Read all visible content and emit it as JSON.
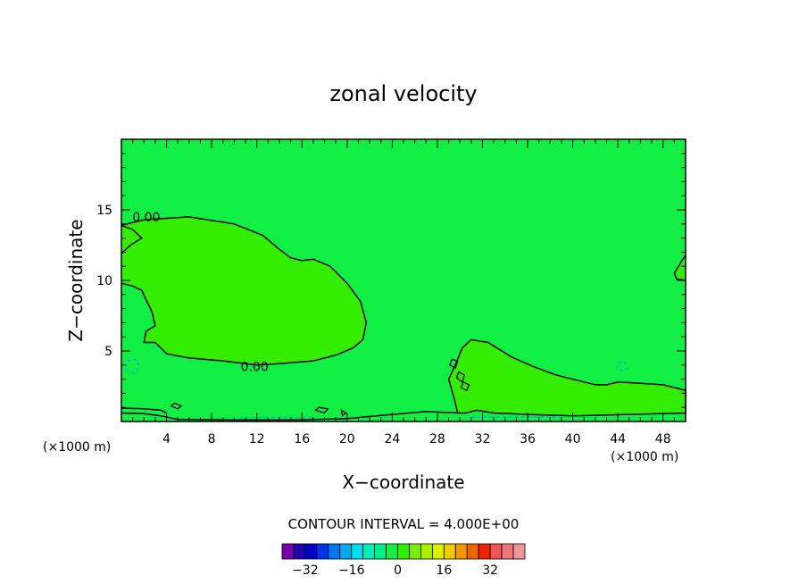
{
  "chart_data": {
    "type": "contour",
    "title": "zonal velocity",
    "xlabel": "X−coordinate",
    "ylabel": "Z−coordinate",
    "x_unit_label": "(×1000 m)",
    "x_unit_label_bottom": "(×1000 m)",
    "xlim": [
      0,
      50
    ],
    "ylim": [
      0,
      20
    ],
    "x_ticks": [
      4,
      8,
      12,
      16,
      20,
      24,
      28,
      32,
      36,
      40,
      44,
      48
    ],
    "x_tick_labels": [
      "4",
      "8",
      "12",
      "16",
      "20",
      "24",
      "28",
      "32",
      "36",
      "40",
      "44",
      "48"
    ],
    "y_ticks": [
      5,
      10,
      15
    ],
    "y_tick_labels": [
      "5",
      "10",
      "15"
    ],
    "background_color": "#11EE44",
    "region_color": "#33EE00",
    "contour_labels": [
      {
        "text": "0.00",
        "x": 2.2,
        "y": 14.5
      },
      {
        "text": "0.00",
        "x": 11.8,
        "y": 3.9
      }
    ],
    "zero_contours": [
      [
        [
          0,
          13.9
        ],
        [
          2.0,
          14.3
        ],
        [
          6.0,
          14.5
        ],
        [
          10.0,
          14.0
        ],
        [
          12.5,
          13.2
        ],
        [
          14.0,
          12.2
        ],
        [
          15.0,
          11.6
        ],
        [
          16.0,
          11.4
        ],
        [
          17.0,
          11.5
        ],
        [
          18.5,
          11.0
        ],
        [
          20.0,
          9.8
        ],
        [
          21.2,
          8.5
        ],
        [
          21.7,
          7.0
        ],
        [
          21.4,
          5.8
        ],
        [
          20.5,
          5.2
        ],
        [
          19.0,
          4.7
        ],
        [
          17.0,
          4.3
        ],
        [
          14.0,
          4.1
        ],
        [
          12.0,
          4.0
        ],
        [
          9.0,
          4.3
        ],
        [
          6.0,
          4.5
        ],
        [
          4.0,
          4.8
        ],
        [
          3.0,
          5.6
        ],
        [
          2.0,
          5.6
        ],
        [
          2.2,
          6.4
        ],
        [
          3.0,
          6.8
        ],
        [
          2.7,
          7.8
        ],
        [
          2.2,
          8.6
        ],
        [
          1.8,
          9.3
        ],
        [
          1.0,
          9.6
        ],
        [
          0,
          9.8
        ]
      ],
      [
        [
          0,
          11.9
        ],
        [
          0.8,
          12.5
        ],
        [
          1.8,
          13.0
        ],
        [
          1.0,
          13.6
        ],
        [
          0,
          13.9
        ]
      ],
      [
        [
          29.8,
          0.6
        ],
        [
          29.5,
          1.6
        ],
        [
          29.0,
          3.0
        ],
        [
          29.6,
          4.0
        ],
        [
          30.2,
          5.2
        ],
        [
          31.0,
          5.8
        ],
        [
          32.5,
          5.6
        ],
        [
          34.5,
          4.6
        ],
        [
          36.5,
          3.9
        ],
        [
          38.5,
          3.3
        ],
        [
          40.5,
          2.9
        ],
        [
          42.0,
          2.6
        ],
        [
          43.0,
          2.6
        ],
        [
          44.0,
          2.8
        ],
        [
          46.0,
          2.7
        ],
        [
          48.0,
          2.6
        ],
        [
          50.0,
          2.2
        ],
        [
          50.0,
          0.6
        ],
        [
          45.0,
          0.5
        ],
        [
          40.0,
          0.4
        ],
        [
          36.0,
          0.5
        ],
        [
          33.0,
          0.6
        ],
        [
          31.5,
          0.8
        ],
        [
          30.5,
          0.6
        ],
        [
          29.8,
          0.6
        ]
      ],
      [
        [
          0,
          0.6
        ],
        [
          2.0,
          0.55
        ],
        [
          3.5,
          0.4
        ],
        [
          5.0,
          0.15
        ],
        [
          10.0,
          0.1
        ],
        [
          15.0,
          0.1
        ],
        [
          20.0,
          0.2
        ],
        [
          24.0,
          0.5
        ],
        [
          27.0,
          0.7
        ],
        [
          29.8,
          0.6
        ]
      ],
      [
        [
          0,
          0.95
        ],
        [
          2.0,
          0.9
        ],
        [
          3.5,
          0.8
        ],
        [
          4.0,
          0.6
        ]
      ],
      [
        [
          50,
          10.0
        ],
        [
          49.2,
          10.1
        ],
        [
          49.0,
          10.5
        ],
        [
          49.6,
          11.3
        ],
        [
          50,
          11.8
        ]
      ]
    ],
    "closed_contours": [
      [
        [
          4.7,
          1.3
        ],
        [
          5.3,
          1.1
        ],
        [
          5.0,
          0.9
        ],
        [
          4.4,
          1.1
        ],
        [
          4.7,
          1.3
        ]
      ],
      [
        [
          17.5,
          1.0
        ],
        [
          18.3,
          0.9
        ],
        [
          18.0,
          0.6
        ],
        [
          17.2,
          0.8
        ],
        [
          17.5,
          1.0
        ]
      ],
      [
        [
          19.5,
          0.8
        ],
        [
          19.9,
          0.6
        ],
        [
          19.6,
          0.4
        ],
        [
          19.5,
          0.8
        ]
      ],
      [
        [
          29.3,
          4.4
        ],
        [
          29.8,
          4.3
        ],
        [
          29.6,
          3.8
        ],
        [
          29.1,
          4.0
        ],
        [
          29.3,
          4.4
        ]
      ],
      [
        [
          29.9,
          3.5
        ],
        [
          30.4,
          3.3
        ],
        [
          30.2,
          2.8
        ],
        [
          29.7,
          3.1
        ],
        [
          29.9,
          3.5
        ]
      ],
      [
        [
          30.3,
          2.8
        ],
        [
          30.8,
          2.6
        ],
        [
          30.6,
          2.2
        ],
        [
          30.1,
          2.4
        ],
        [
          30.3,
          2.8
        ]
      ]
    ],
    "dashed_contours": [
      [
        [
          0.5,
          4.3
        ],
        [
          1.2,
          4.4
        ],
        [
          1.6,
          3.9
        ],
        [
          1.2,
          3.4
        ],
        [
          0.4,
          3.6
        ],
        [
          0.5,
          4.3
        ]
      ],
      [
        [
          44.0,
          4.2
        ],
        [
          44.6,
          4.2
        ],
        [
          44.9,
          3.8
        ],
        [
          44.4,
          3.6
        ],
        [
          43.9,
          3.8
        ],
        [
          44.0,
          4.2
        ]
      ],
      [
        [
          10.5,
          0.25
        ],
        [
          14.0,
          0.3
        ],
        [
          17.0,
          0.25
        ]
      ],
      [
        [
          31.0,
          0.3
        ],
        [
          35.0,
          0.35
        ],
        [
          39.0,
          0.3
        ]
      ]
    ],
    "contour_interval_text": "CONTOUR INTERVAL = 4.000E+00",
    "colorbar": {
      "colors": [
        "#7700AA",
        "#2200AA",
        "#0000CC",
        "#0033EE",
        "#0077EE",
        "#00AAEE",
        "#00DDEE",
        "#00EEBB",
        "#00EE88",
        "#11EE44",
        "#33EE00",
        "#77EE00",
        "#AAEE00",
        "#DDEE00",
        "#EECC00",
        "#EE9900",
        "#EE6600",
        "#EE2200",
        "#EE5555",
        "#EE7777",
        "#EE9999"
      ],
      "labels": [
        "−32",
        "−16",
        "0",
        "16",
        "32"
      ],
      "label_values": [
        -32,
        -16,
        0,
        16,
        32
      ],
      "min": -40,
      "max": 44
    }
  }
}
